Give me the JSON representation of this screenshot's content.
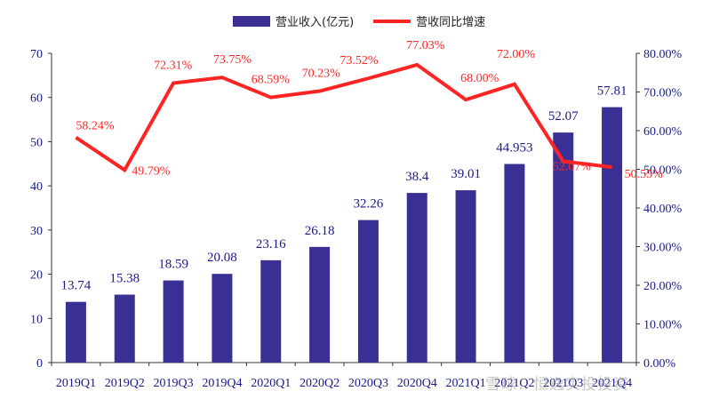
{
  "chart_data": {
    "type": "bar",
    "categories": [
      "2019Q1",
      "2019Q2",
      "2019Q3",
      "2019Q4",
      "2020Q1",
      "2020Q2",
      "2020Q3",
      "2020Q4",
      "2021Q1",
      "2021Q2",
      "2021Q3",
      "2021Q4"
    ],
    "series": [
      {
        "name": "营业收入(亿元)",
        "type": "bar",
        "axis": "left",
        "values": [
          13.74,
          15.38,
          18.59,
          20.08,
          23.16,
          26.18,
          32.26,
          38.4,
          39.01,
          44.953,
          52.07,
          57.81
        ],
        "labels": [
          "13.74",
          "15.38",
          "18.59",
          "20.08",
          "23.16",
          "26.18",
          "32.26",
          "38.4",
          "39.01",
          "44.953",
          "52.07",
          "57.81"
        ]
      },
      {
        "name": "营收同比增速",
        "type": "line",
        "axis": "right",
        "values": [
          58.24,
          49.79,
          72.31,
          73.75,
          68.59,
          70.23,
          73.52,
          77.03,
          68.0,
          72.0,
          52.07,
          50.55
        ],
        "labels": [
          "58.24%",
          "49.79%",
          "72.31%",
          "73.75%",
          "68.59%",
          "70.23%",
          "73.52%",
          "77.03%",
          "68.00%",
          "72.00%",
          "52.07%",
          "50.55%"
        ]
      }
    ],
    "y_left": {
      "ylim": [
        0,
        70
      ],
      "ticks": [
        0,
        10,
        20,
        30,
        40,
        50,
        60,
        70
      ]
    },
    "y_right": {
      "ylim": [
        0,
        80
      ],
      "ticks": [
        "0.00%",
        "10.00%",
        "20.00%",
        "30.00%",
        "40.00%",
        "50.00%",
        "60.00%",
        "70.00%",
        "80.00%"
      ]
    },
    "grid": false,
    "legend_position": "top-center",
    "colors": {
      "bar": "#3a3093",
      "line": "#ff2424",
      "axis_text": "#1a1a8c",
      "bar_label": "#1a1a8c",
      "line_label": "#ff2424"
    }
  },
  "watermark": "雪球：恒逸实投投资"
}
